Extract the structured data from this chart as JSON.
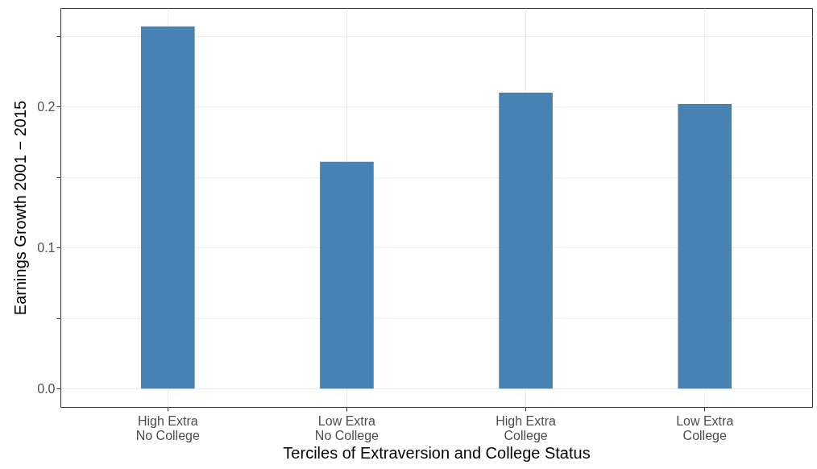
{
  "chart_data": {
    "type": "bar",
    "xlabel": "Terciles of Extraversion and College Status",
    "ylabel": "Earnings Growth 2001 − 2015",
    "categories": [
      "High Extra\nNo College",
      "Low Extra\nNo College",
      "High Extra\nCollege",
      "Low Extra\nCollege"
    ],
    "values": [
      0.257,
      0.161,
      0.21,
      0.202
    ],
    "color": "#4682b4",
    "ylim": [
      -0.013,
      0.27
    ],
    "yticks": [
      {
        "value": 0,
        "label": "0.0"
      },
      {
        "value": 0.05,
        "label": null
      },
      0.1,
      {
        "value": 0.15,
        "label": null
      },
      0.2,
      {
        "value": 0.25,
        "label": null
      }
    ],
    "grid": true
  }
}
